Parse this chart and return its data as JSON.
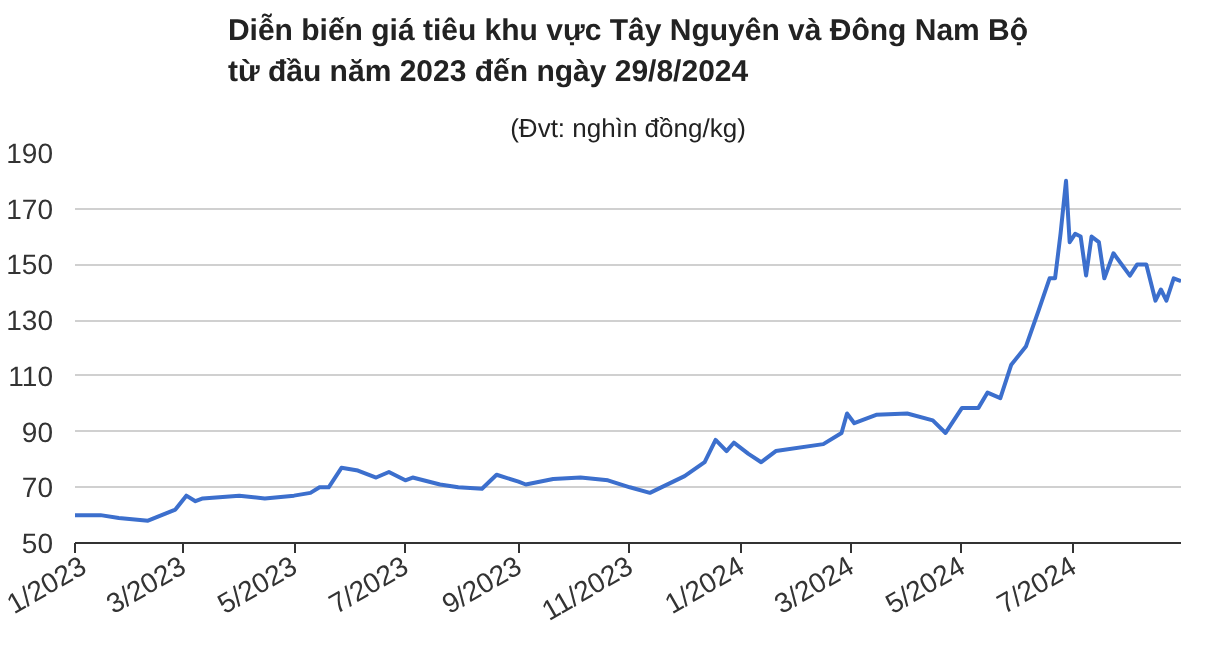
{
  "chart_data": {
    "type": "line",
    "title": "Diễn biến giá tiêu khu vực Tây Nguyên và Đông Nam Bộ\ntừ đầu năm 2023 đến ngày 29/8/2024",
    "subtitle": "(Đvt: nghìn đồng/kg)",
    "x": [
      "2023-01-01",
      "2023-01-15",
      "2023-01-25",
      "2023-02-10",
      "2023-02-25",
      "2023-03-03",
      "2023-03-08",
      "2023-03-12",
      "2023-04-01",
      "2023-04-15",
      "2023-05-01",
      "2023-05-10",
      "2023-05-15",
      "2023-05-20",
      "2023-05-27",
      "2023-06-05",
      "2023-06-15",
      "2023-06-22",
      "2023-07-01",
      "2023-07-05",
      "2023-07-20",
      "2023-07-30",
      "2023-08-12",
      "2023-08-20",
      "2023-09-01",
      "2023-09-05",
      "2023-09-20",
      "2023-10-05",
      "2023-10-20",
      "2023-11-01",
      "2023-11-12",
      "2023-12-01",
      "2023-12-12",
      "2023-12-18",
      "2023-12-24",
      "2023-12-28",
      "2024-01-05",
      "2024-01-12",
      "2024-01-20",
      "2024-02-15",
      "2024-02-25",
      "2024-02-28",
      "2024-03-03",
      "2024-03-15",
      "2024-04-01",
      "2024-04-15",
      "2024-04-22",
      "2024-05-01",
      "2024-05-10",
      "2024-05-15",
      "2024-05-22",
      "2024-05-28",
      "2024-06-05",
      "2024-06-12",
      "2024-06-18",
      "2024-06-21",
      "2024-06-24",
      "2024-06-27",
      "2024-06-29",
      "2024-07-02",
      "2024-07-05",
      "2024-07-08",
      "2024-07-11",
      "2024-07-15",
      "2024-07-18",
      "2024-07-23",
      "2024-08-01",
      "2024-08-05",
      "2024-08-10",
      "2024-08-15",
      "2024-08-18",
      "2024-08-21",
      "2024-08-25",
      "2024-08-29"
    ],
    "series": [
      {
        "color": "#3c6fcd",
        "values": [
          60,
          60,
          59,
          58,
          62,
          67,
          65,
          66,
          67,
          66,
          67,
          68,
          70,
          70,
          77,
          76,
          73.5,
          75.5,
          72.5,
          73.5,
          71,
          70,
          69.5,
          74.5,
          72,
          71,
          73,
          73.5,
          72.5,
          70,
          68,
          74,
          79,
          87,
          83,
          86,
          82,
          79,
          83,
          85.5,
          89.5,
          96.5,
          93,
          96,
          96.5,
          94,
          89.5,
          98.5,
          98.5,
          104,
          102,
          114,
          120.5,
          133.5,
          145,
          145,
          161,
          180,
          158,
          161,
          160,
          146,
          160,
          158,
          145,
          154,
          146,
          150,
          150,
          137,
          141,
          137,
          145,
          144
        ]
      }
    ],
    "ylim": [
      50,
      190
    ],
    "yticks": [
      50,
      70,
      90,
      110,
      130,
      150,
      170,
      190
    ],
    "xlim": [
      "2023-01-01",
      "2024-08-29"
    ],
    "xticks": [
      {
        "value": "2023-01-01",
        "label": "1/2023"
      },
      {
        "value": "2023-03-01",
        "label": "3/2023"
      },
      {
        "value": "2023-05-01",
        "label": "5/2023"
      },
      {
        "value": "2023-07-01",
        "label": "7/2023"
      },
      {
        "value": "2023-09-01",
        "label": "9/2023"
      },
      {
        "value": "2023-11-01",
        "label": "11/2023"
      },
      {
        "value": "2024-01-01",
        "label": "1/2024"
      },
      {
        "value": "2024-03-01",
        "label": "3/2024"
      },
      {
        "value": "2024-05-01",
        "label": "5/2024"
      },
      {
        "value": "2024-07-01",
        "label": "7/2024"
      }
    ],
    "grid": "y",
    "line_style": "solid"
  }
}
